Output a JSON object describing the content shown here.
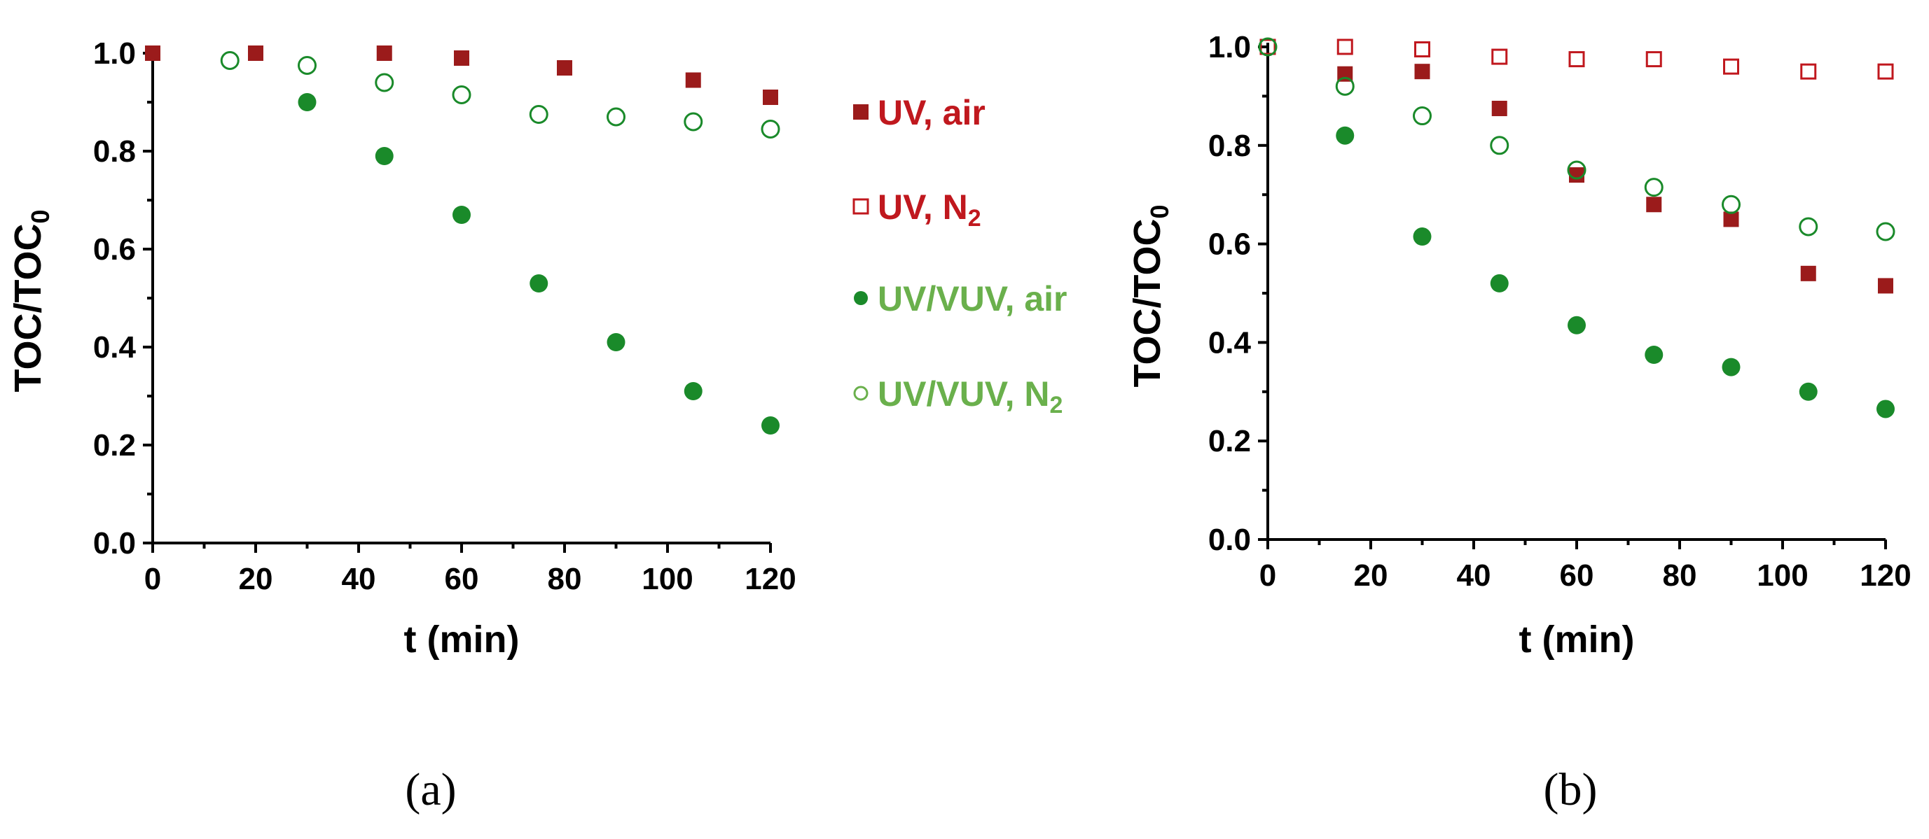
{
  "colors": {
    "dark_red": "#9b1b1b",
    "green": "#1a8a2a",
    "light_green": "#6ab04c",
    "red_text": "#c0181e"
  },
  "legend": {
    "items": [
      {
        "series": "UV, air",
        "label_parts": [
          "UV, air"
        ],
        "marker": "filled-square",
        "color": "#9b1b1b",
        "text_color": "#c0181e"
      },
      {
        "series": "UV, N2",
        "label_parts": [
          "UV, N",
          "2"
        ],
        "marker": "open-square",
        "color": "#c0181e",
        "text_color": "#c0181e"
      },
      {
        "series": "UV/VUV, air",
        "label_parts": [
          "UV/VUV, air"
        ],
        "marker": "filled-circle",
        "color": "#1a8a2a",
        "text_color": "#6ab04c"
      },
      {
        "series": "UV/VUV, N2",
        "label_parts": [
          "UV/VUV, N",
          "2"
        ],
        "marker": "open-circle",
        "color": "#1a8a2a",
        "text_color": "#6ab04c"
      }
    ]
  },
  "panels": {
    "a": {
      "label": "(a)"
    },
    "b": {
      "label": "(b)"
    }
  },
  "chart_data": [
    {
      "type": "scatter",
      "panel": "a",
      "xlabel": "t (min)",
      "ylabel": "TOC/TOC",
      "ylabel_sub": "0",
      "xlim": [
        0,
        120
      ],
      "ylim": [
        0.0,
        1.0
      ],
      "xticks": [
        "0",
        "20",
        "40",
        "60",
        "80",
        "100",
        "120"
      ],
      "yticks": [
        "0.0",
        "0.2",
        "0.4",
        "0.6",
        "0.8",
        "1.0"
      ],
      "grid": false,
      "series": [
        {
          "name": "UV, air",
          "marker": "filled-square",
          "x": [
            0,
            20,
            45,
            60,
            80,
            105,
            120
          ],
          "y": [
            1.0,
            1.0,
            1.0,
            0.99,
            0.97,
            0.945,
            0.91
          ]
        },
        {
          "name": "UV/VUV, N2",
          "marker": "open-circle",
          "x": [
            15,
            30,
            45,
            60,
            75,
            90,
            105,
            120
          ],
          "y": [
            0.985,
            0.975,
            0.94,
            0.915,
            0.875,
            0.87,
            0.86,
            0.845
          ]
        },
        {
          "name": "UV/VUV, air",
          "marker": "filled-circle",
          "x": [
            30,
            45,
            60,
            75,
            90,
            105,
            120
          ],
          "y": [
            0.9,
            0.79,
            0.67,
            0.53,
            0.41,
            0.31,
            0.24
          ]
        }
      ]
    },
    {
      "type": "scatter",
      "panel": "b",
      "xlabel": "t (min)",
      "ylabel": "TOC/TOC",
      "ylabel_sub": "0",
      "xlim": [
        0,
        120
      ],
      "ylim": [
        0.0,
        1.0
      ],
      "xticks": [
        "0",
        "20",
        "40",
        "60",
        "80",
        "100",
        "120"
      ],
      "yticks": [
        "0.0",
        "0.2",
        "0.4",
        "0.6",
        "0.8",
        "1.0"
      ],
      "grid": false,
      "series": [
        {
          "name": "UV, N2",
          "marker": "open-square",
          "x": [
            0,
            15,
            30,
            45,
            60,
            75,
            90,
            105,
            120
          ],
          "y": [
            1.0,
            1.0,
            0.995,
            0.98,
            0.975,
            0.975,
            0.96,
            0.95,
            0.95
          ]
        },
        {
          "name": "UV, air",
          "marker": "filled-square",
          "x": [
            15,
            30,
            45,
            60,
            75,
            90,
            105,
            120
          ],
          "y": [
            0.945,
            0.95,
            0.875,
            0.74,
            0.68,
            0.65,
            0.54,
            0.515
          ]
        },
        {
          "name": "UV/VUV, N2",
          "marker": "open-circle",
          "x": [
            0,
            15,
            30,
            45,
            60,
            75,
            90,
            105,
            120
          ],
          "y": [
            1.0,
            0.92,
            0.86,
            0.8,
            0.75,
            0.715,
            0.68,
            0.635,
            0.625
          ]
        },
        {
          "name": "UV/VUV, air",
          "marker": "filled-circle",
          "x": [
            15,
            30,
            45,
            60,
            75,
            90,
            105,
            120
          ],
          "y": [
            0.82,
            0.615,
            0.52,
            0.435,
            0.375,
            0.35,
            0.3,
            0.265
          ]
        }
      ]
    }
  ]
}
